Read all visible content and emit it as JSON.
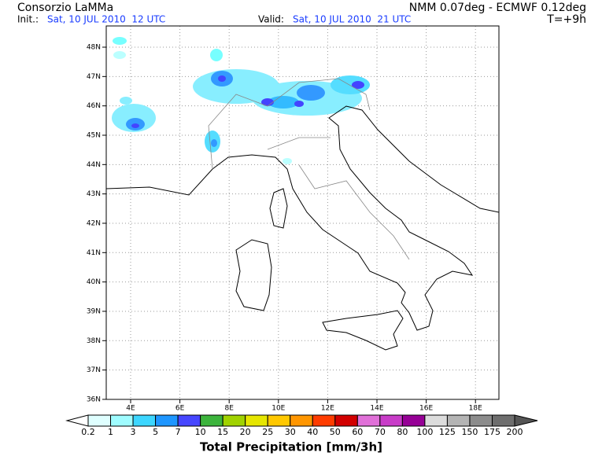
{
  "header": {
    "title": "Consorzio LaMMa",
    "model": "NMM 0.07deg - ECMWF 0.12deg",
    "init_label": "Init.:",
    "init_time": "Sat, 10 JUL 2010  12 UTC",
    "valid_label": "Valid:",
    "valid_time": "Sat, 10 JUL 2010  21 UTC",
    "lead": "T=+9h"
  },
  "map": {
    "lat_labels": [
      "48N",
      "47N",
      "46N",
      "45N",
      "44N",
      "43N",
      "42N",
      "41N",
      "40N",
      "39N",
      "38N",
      "37N",
      "36N"
    ],
    "lon_labels": [
      "4E",
      "6E",
      "8E",
      "10E",
      "12E",
      "14E",
      "16E",
      "18E"
    ]
  },
  "legend": {
    "labels": [
      "0.2",
      "1",
      "3",
      "5",
      "7",
      "10",
      "15",
      "20",
      "25",
      "30",
      "40",
      "50",
      "60",
      "70",
      "80",
      "100",
      "125",
      "150",
      "175",
      "200"
    ],
    "title": "Total Precipitation [mm/3h]"
  }
}
